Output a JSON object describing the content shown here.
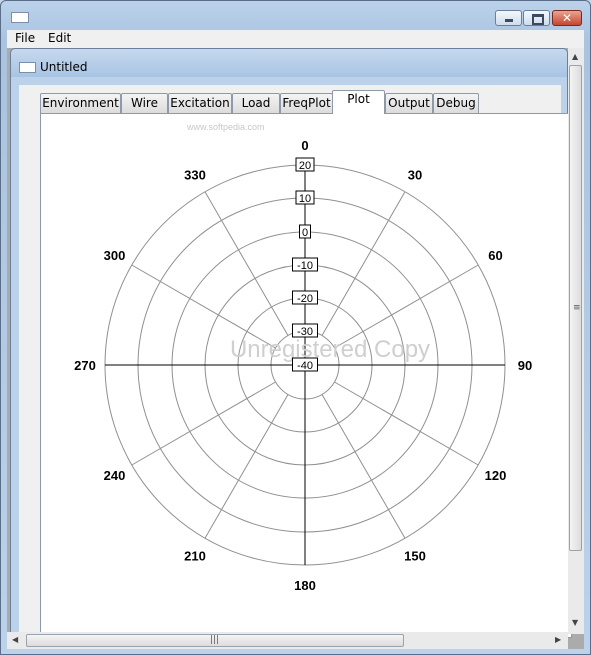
{
  "menu": {
    "file": "File",
    "edit": "Edit"
  },
  "document": {
    "title": "Untitled"
  },
  "tabs": [
    {
      "label": "Environment"
    },
    {
      "label": "Wire"
    },
    {
      "label": "Excitation"
    },
    {
      "label": "Load"
    },
    {
      "label": "FreqPlot"
    },
    {
      "label": "Plot"
    },
    {
      "label": "Output"
    },
    {
      "label": "Debug"
    }
  ],
  "active_tab": "Plot",
  "watermark": {
    "softpedia": "www.softpedia.com",
    "unregistered": "Unregistered Copy"
  },
  "plot": {
    "angle_labels": [
      "0",
      "30",
      "60",
      "90",
      "120",
      "150",
      "180",
      "210",
      "240",
      "270",
      "300",
      "330"
    ],
    "radial_labels": [
      "20",
      "10",
      "0",
      "-10",
      "-20",
      "-30",
      "-40"
    ]
  }
}
